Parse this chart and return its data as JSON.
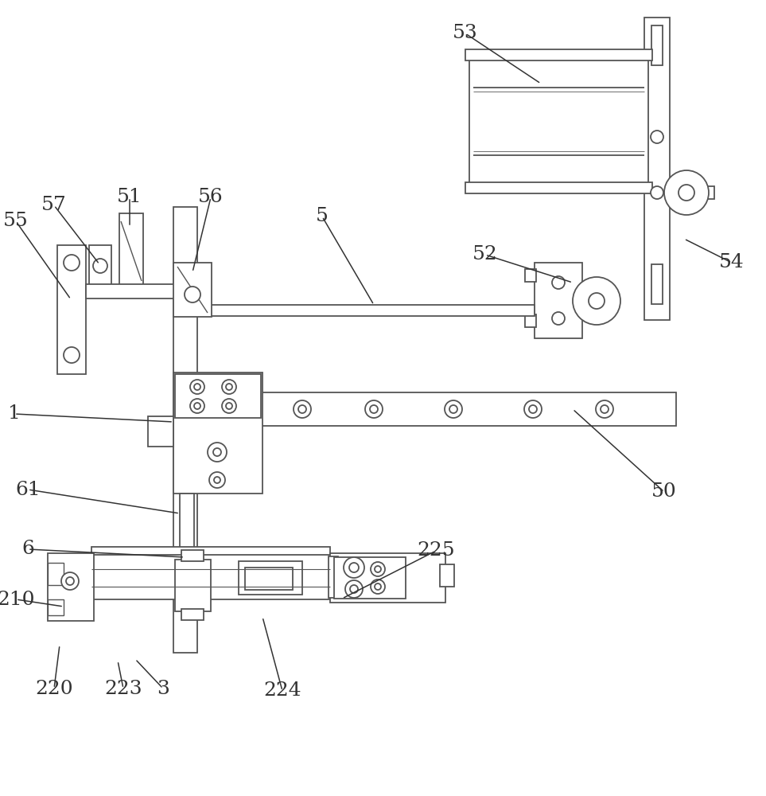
{
  "bg_color": "#ffffff",
  "lc": "#555555",
  "lc2": "#333333",
  "lw": 1.3,
  "figsize": [
    9.63,
    10.0
  ],
  "dpi": 100
}
